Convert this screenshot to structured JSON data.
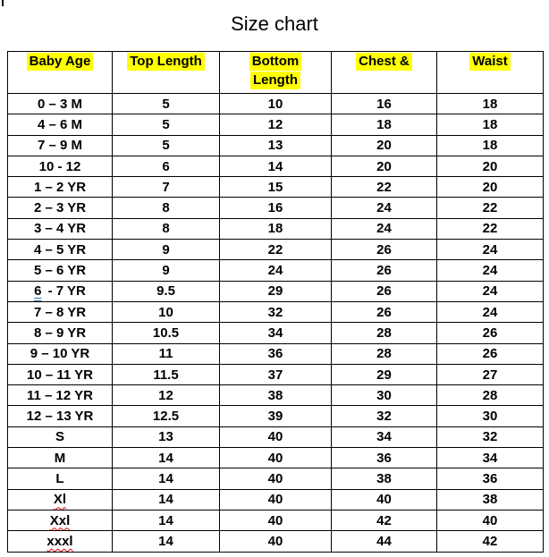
{
  "title": "Size chart",
  "colors": {
    "highlight": "#FFFF00",
    "text": "#000000",
    "border": "#000000",
    "squiggle_red": "#E00000",
    "grammar_blue": "#2E75B6"
  },
  "table": {
    "header_lines": [
      [
        "Baby Age"
      ],
      [
        "Top Length"
      ],
      [
        "Bottom",
        "Length"
      ],
      [
        "Chest &"
      ],
      [
        "Waist"
      ]
    ],
    "rows": [
      {
        "cells": [
          "0 – 3 M",
          "5",
          "10",
          "16",
          "18"
        ]
      },
      {
        "cells": [
          "4 – 6 M",
          "5",
          "12",
          "18",
          "18"
        ]
      },
      {
        "cells": [
          "7 – 9 M",
          "5",
          "13",
          "20",
          "18"
        ]
      },
      {
        "cells": [
          "10 - 12",
          "6",
          "14",
          "20",
          "20"
        ]
      },
      {
        "cells": [
          "1 – 2 YR",
          "7",
          "15",
          "22",
          "20"
        ]
      },
      {
        "cells": [
          "2 – 3 YR",
          "8",
          "16",
          "24",
          "22"
        ]
      },
      {
        "cells": [
          "3 – 4 YR",
          "8",
          "18",
          "24",
          "22"
        ]
      },
      {
        "cells": [
          "4 – 5 YR",
          "9",
          "22",
          "26",
          "24"
        ]
      },
      {
        "cells": [
          "5 – 6 YR",
          "9",
          "24",
          "26",
          "24"
        ]
      },
      {
        "cells": [
          "6 - 7 YR",
          "9.5",
          "29",
          "26",
          "24"
        ],
        "age_decor": "blue-double-underline",
        "age_parts": [
          "6",
          " - 7 YR"
        ]
      },
      {
        "cells": [
          "7 – 8 YR",
          "10",
          "32",
          "26",
          "24"
        ]
      },
      {
        "cells": [
          "8 – 9 YR",
          "10.5",
          "34",
          "28",
          "26"
        ]
      },
      {
        "cells": [
          "9 – 10 YR",
          "11",
          "36",
          "28",
          "26"
        ]
      },
      {
        "cells": [
          "10 – 11 YR",
          "11.5",
          "37",
          "29",
          "27"
        ]
      },
      {
        "cells": [
          "11 – 12 YR",
          "12",
          "38",
          "30",
          "28"
        ]
      },
      {
        "cells": [
          "12 – 13 YR",
          "12.5",
          "39",
          "32",
          "30"
        ]
      },
      {
        "cells": [
          "S",
          "13",
          "40",
          "34",
          "32"
        ]
      },
      {
        "cells": [
          "M",
          "14",
          "40",
          "36",
          "34"
        ]
      },
      {
        "cells": [
          "L",
          "14",
          "40",
          "38",
          "36"
        ]
      },
      {
        "cells": [
          "Xl",
          "14",
          "40",
          "40",
          "38"
        ],
        "age_decor": "red-squiggle"
      },
      {
        "cells": [
          "Xxl",
          "14",
          "40",
          "42",
          "40"
        ],
        "age_decor": "red-squiggle"
      },
      {
        "cells": [
          "xxxl",
          "14",
          "40",
          "44",
          "42"
        ],
        "age_decor": "red-squiggle"
      }
    ]
  }
}
